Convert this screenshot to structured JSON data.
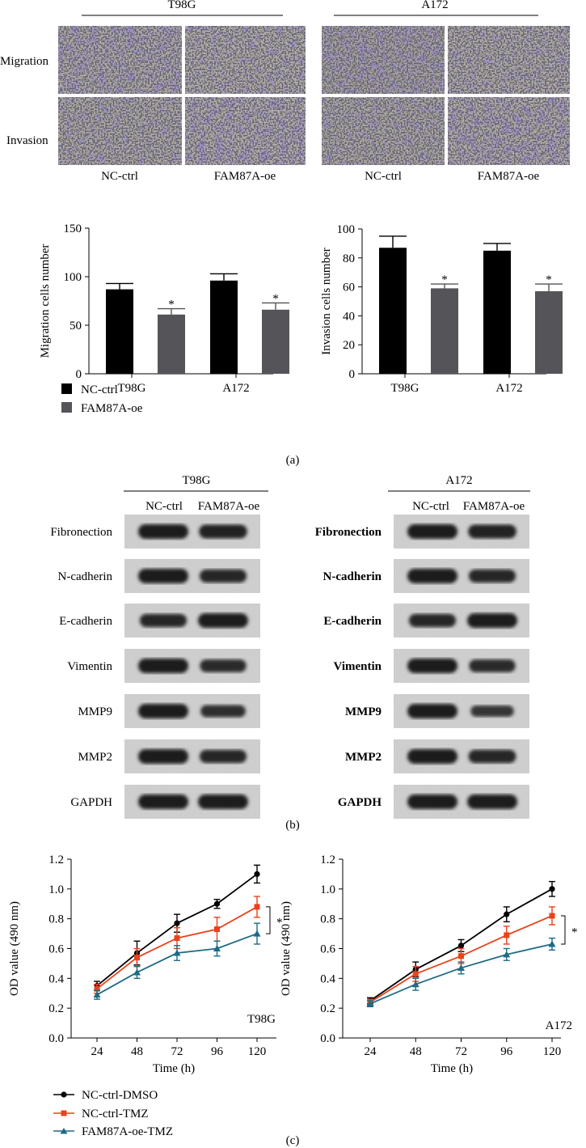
{
  "panel_a": {
    "label": "(a)",
    "micro": {
      "cell_lines": [
        "T98G",
        "A172"
      ],
      "row_labels": [
        "Migration",
        "Invasion"
      ],
      "col_labels": [
        "NC-ctrl",
        "FAM87A-oe",
        "NC-ctrl",
        "FAM87A-oe"
      ]
    },
    "legend": [
      "NC-ctrl",
      "FAM87A-oe"
    ]
  },
  "panel_b": {
    "label": "(b)",
    "cell_lines": [
      "T98G",
      "A172"
    ],
    "lane_labels": [
      "NC-ctrl",
      "FAM87A-oe"
    ],
    "proteins": [
      "Fibronection",
      "N-cadherin",
      "E-cadherin",
      "Vimentin",
      "MMP9",
      "MMP2",
      "GAPDH"
    ],
    "band_intensity": {
      "T98G": [
        [
          1.0,
          0.85
        ],
        [
          1.0,
          0.75
        ],
        [
          0.75,
          1.0
        ],
        [
          1.0,
          0.7
        ],
        [
          1.0,
          0.6
        ],
        [
          1.0,
          0.75
        ],
        [
          1.0,
          1.0
        ]
      ],
      "A172": [
        [
          1.0,
          0.85
        ],
        [
          1.0,
          0.75
        ],
        [
          0.75,
          1.0
        ],
        [
          1.0,
          0.7
        ],
        [
          1.0,
          0.45
        ],
        [
          1.0,
          0.8
        ],
        [
          1.0,
          1.0
        ]
      ]
    }
  },
  "panel_c": {
    "label": "(c)",
    "legend": [
      "NC-ctrl-DMSO",
      "NC-ctrl-TMZ",
      "FAM87A-oe-TMZ"
    ]
  },
  "colors": {
    "black_bar": "#000000",
    "gray_bar": "#545459",
    "dmso": "#000000",
    "tmz": "#e8431c",
    "oe_tmz": "#1d6b85"
  },
  "chart_data": [
    {
      "type": "bar",
      "ylabel": "Migration cells number",
      "categories": [
        "T98G",
        "A172"
      ],
      "ylim": [
        0,
        150
      ],
      "yticks": [
        "0",
        "50",
        "100",
        "150"
      ],
      "series": [
        {
          "name": "NC-ctrl",
          "values": [
            87,
            96
          ],
          "errors": [
            6,
            7
          ]
        },
        {
          "name": "FAM87A-oe",
          "values": [
            61,
            66
          ],
          "errors": [
            6,
            7
          ]
        }
      ],
      "annotations": [
        "*",
        "*"
      ]
    },
    {
      "type": "bar",
      "ylabel": "Invasion cells number",
      "categories": [
        "T98G",
        "A172"
      ],
      "ylim": [
        0,
        100
      ],
      "yticks": [
        "0",
        "20",
        "40",
        "60",
        "80",
        "100"
      ],
      "series": [
        {
          "name": "NC-ctrl",
          "values": [
            87,
            85
          ],
          "errors": [
            8,
            5
          ]
        },
        {
          "name": "FAM87A-oe",
          "values": [
            59,
            57
          ],
          "errors": [
            3,
            5
          ]
        }
      ],
      "annotations": [
        "*",
        "*"
      ]
    },
    {
      "type": "line",
      "ylabel": "OD value (490 nm)",
      "xlabel": "Time (h)",
      "annotation": "T98G",
      "x": [
        24,
        48,
        72,
        96,
        120
      ],
      "xticks": [
        "24",
        "48",
        "72",
        "96",
        "120"
      ],
      "ylim": [
        0,
        1.2
      ],
      "yticks": [
        "0.0",
        "0.2",
        "0.4",
        "0.6",
        "0.8",
        "1.0",
        "1.2"
      ],
      "series": [
        {
          "name": "NC-ctrl-DMSO",
          "values": [
            0.35,
            0.57,
            0.77,
            0.9,
            1.1
          ],
          "errors": [
            0.03,
            0.08,
            0.06,
            0.03,
            0.06
          ]
        },
        {
          "name": "NC-ctrl-TMZ",
          "values": [
            0.33,
            0.54,
            0.67,
            0.73,
            0.88
          ],
          "errors": [
            0.03,
            0.06,
            0.07,
            0.08,
            0.07
          ]
        },
        {
          "name": "FAM87A-oe-TMZ",
          "values": [
            0.29,
            0.44,
            0.57,
            0.6,
            0.7
          ],
          "errors": [
            0.03,
            0.04,
            0.05,
            0.05,
            0.07
          ]
        }
      ],
      "significance": "*"
    },
    {
      "type": "line",
      "ylabel": "OD value (490 nm)",
      "xlabel": "Time (h)",
      "annotation": "A172",
      "x": [
        24,
        48,
        72,
        96,
        120
      ],
      "xticks": [
        "24",
        "48",
        "72",
        "96",
        "120"
      ],
      "ylim": [
        0,
        1.2
      ],
      "yticks": [
        "0.0",
        "0.2",
        "0.4",
        "0.6",
        "0.8",
        "1.0",
        "1.2"
      ],
      "series": [
        {
          "name": "NC-ctrl-DMSO",
          "values": [
            0.25,
            0.46,
            0.62,
            0.83,
            1.0
          ],
          "errors": [
            0.02,
            0.05,
            0.04,
            0.05,
            0.05
          ]
        },
        {
          "name": "NC-ctrl-TMZ",
          "values": [
            0.24,
            0.43,
            0.55,
            0.69,
            0.82
          ],
          "errors": [
            0.02,
            0.05,
            0.05,
            0.06,
            0.06
          ]
        },
        {
          "name": "FAM87A-oe-TMZ",
          "values": [
            0.23,
            0.36,
            0.47,
            0.56,
            0.63
          ],
          "errors": [
            0.02,
            0.04,
            0.04,
            0.04,
            0.04
          ]
        }
      ],
      "significance": "*"
    }
  ]
}
